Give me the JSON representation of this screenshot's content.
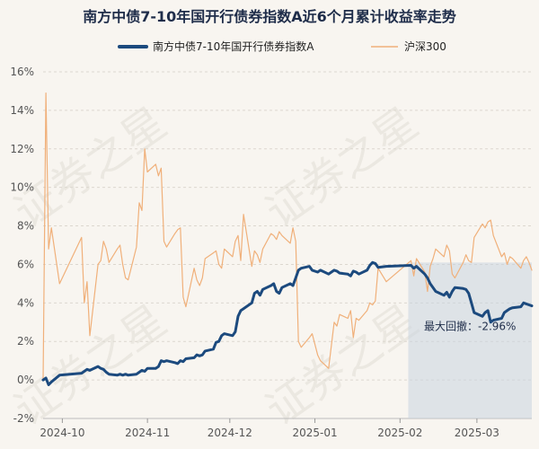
{
  "chart_data": {
    "type": "line",
    "title": "南方中债7-10年国开行债券指数A近6个月累计收益率走势",
    "xlabel": "",
    "ylabel": "",
    "ylim": [
      -2,
      16
    ],
    "y_ticks": [
      "-2%",
      "0%",
      "2%",
      "4%",
      "6%",
      "8%",
      "10%",
      "12%",
      "14%",
      "16%"
    ],
    "x_ticks": [
      "2024-10",
      "2024-11",
      "2024-12",
      "2025-01",
      "2025-02",
      "2025-03"
    ],
    "x_tick_dates": [
      "2024-10-01",
      "2024-11-01",
      "2024-12-01",
      "2025-01-01",
      "2025-02-01",
      "2025-03-01"
    ],
    "grid": "horizontal",
    "legend_position": "top",
    "watermark": "证券之星",
    "series": [
      {
        "name": "南方中债7-10年国开行债券指数A",
        "color": "#1c4a7e",
        "x": [
          "2024-09-24",
          "2024-09-25",
          "2024-09-26",
          "2024-09-27",
          "2024-09-30",
          "2024-10-08",
          "2024-10-09",
          "2024-10-10",
          "2024-10-11",
          "2024-10-14",
          "2024-10-15",
          "2024-10-16",
          "2024-10-17",
          "2024-10-18",
          "2024-10-21",
          "2024-10-22",
          "2024-10-23",
          "2024-10-24",
          "2024-10-25",
          "2024-10-28",
          "2024-10-29",
          "2024-10-30",
          "2024-10-31",
          "2024-11-01",
          "2024-11-04",
          "2024-11-05",
          "2024-11-06",
          "2024-11-07",
          "2024-11-08",
          "2024-11-11",
          "2024-11-12",
          "2024-11-13",
          "2024-11-14",
          "2024-11-15",
          "2024-11-18",
          "2024-11-19",
          "2024-11-20",
          "2024-11-21",
          "2024-11-22",
          "2024-11-25",
          "2024-11-26",
          "2024-11-27",
          "2024-11-28",
          "2024-11-29",
          "2024-12-02",
          "2024-12-03",
          "2024-12-04",
          "2024-12-05",
          "2024-12-06",
          "2024-12-09",
          "2024-12-10",
          "2024-12-11",
          "2024-12-12",
          "2024-12-13",
          "2024-12-16",
          "2024-12-17",
          "2024-12-18",
          "2024-12-19",
          "2024-12-20",
          "2024-12-23",
          "2024-12-24",
          "2024-12-25",
          "2024-12-26",
          "2024-12-27",
          "2024-12-30",
          "2024-12-31",
          "2025-01-02",
          "2025-01-03",
          "2025-01-06",
          "2025-01-07",
          "2025-01-08",
          "2025-01-09",
          "2025-01-10",
          "2025-01-13",
          "2025-01-14",
          "2025-01-15",
          "2025-01-16",
          "2025-01-17",
          "2025-01-20",
          "2025-01-21",
          "2025-01-22",
          "2025-01-23",
          "2025-01-24",
          "2025-01-27",
          "2025-02-05",
          "2025-02-06",
          "2025-02-07",
          "2025-02-10",
          "2025-02-11",
          "2025-02-12",
          "2025-02-13",
          "2025-02-14",
          "2025-02-17",
          "2025-02-18",
          "2025-02-19",
          "2025-02-20",
          "2025-02-21",
          "2025-02-24",
          "2025-02-25",
          "2025-02-26",
          "2025-02-27",
          "2025-02-28",
          "2025-03-03",
          "2025-03-04",
          "2025-03-05",
          "2025-03-06",
          "2025-03-07",
          "2025-03-10",
          "2025-03-11",
          "2025-03-12",
          "2025-03-13",
          "2025-03-14",
          "2025-03-17",
          "2025-03-18",
          "2025-03-19",
          "2025-03-20",
          "2025-03-21"
        ],
        "y": [
          0.0,
          0.1,
          -0.25,
          -0.1,
          0.25,
          0.35,
          0.45,
          0.55,
          0.5,
          0.7,
          0.6,
          0.55,
          0.4,
          0.3,
          0.25,
          0.3,
          0.25,
          0.3,
          0.25,
          0.3,
          0.4,
          0.5,
          0.45,
          0.6,
          0.6,
          0.7,
          1.0,
          0.95,
          1.0,
          0.9,
          0.85,
          1.0,
          0.95,
          1.1,
          1.15,
          1.3,
          1.25,
          1.3,
          1.5,
          1.6,
          1.95,
          2.0,
          2.3,
          2.4,
          2.3,
          2.5,
          3.3,
          3.6,
          3.7,
          4.0,
          4.5,
          4.6,
          4.4,
          4.7,
          4.9,
          5.0,
          4.6,
          4.5,
          4.8,
          5.0,
          4.9,
          5.3,
          5.7,
          5.8,
          5.9,
          5.7,
          5.6,
          5.7,
          5.5,
          5.6,
          5.7,
          5.65,
          5.55,
          5.5,
          5.4,
          5.65,
          5.6,
          5.5,
          5.7,
          5.95,
          6.1,
          6.05,
          5.85,
          5.9,
          5.95,
          5.8,
          5.9,
          5.5,
          5.3,
          5.0,
          4.8,
          4.6,
          4.4,
          4.55,
          4.3,
          4.6,
          4.8,
          4.75,
          4.7,
          4.5,
          4.0,
          3.5,
          3.3,
          3.5,
          3.6,
          3.0,
          3.1,
          3.2,
          3.5,
          3.6,
          3.7,
          3.75,
          3.8,
          4.0,
          3.95,
          3.9,
          3.85
        ]
      },
      {
        "name": "沪深300",
        "color": "#f0b07a",
        "x": [
          "2024-09-24",
          "2024-09-25",
          "2024-09-26",
          "2024-09-27",
          "2024-09-30",
          "2024-10-08",
          "2024-10-09",
          "2024-10-10",
          "2024-10-11",
          "2024-10-14",
          "2024-10-15",
          "2024-10-16",
          "2024-10-17",
          "2024-10-18",
          "2024-10-21",
          "2024-10-22",
          "2024-10-23",
          "2024-10-24",
          "2024-10-25",
          "2024-10-28",
          "2024-10-29",
          "2024-10-30",
          "2024-10-31",
          "2024-11-01",
          "2024-11-04",
          "2024-11-05",
          "2024-11-06",
          "2024-11-07",
          "2024-11-08",
          "2024-11-11",
          "2024-11-12",
          "2024-11-13",
          "2024-11-14",
          "2024-11-15",
          "2024-11-18",
          "2024-11-19",
          "2024-11-20",
          "2024-11-21",
          "2024-11-22",
          "2024-11-25",
          "2024-11-26",
          "2024-11-27",
          "2024-11-28",
          "2024-11-29",
          "2024-12-02",
          "2024-12-03",
          "2024-12-04",
          "2024-12-05",
          "2024-12-06",
          "2024-12-09",
          "2024-12-10",
          "2024-12-11",
          "2024-12-12",
          "2024-12-13",
          "2024-12-16",
          "2024-12-17",
          "2024-12-18",
          "2024-12-19",
          "2024-12-20",
          "2024-12-23",
          "2024-12-24",
          "2024-12-25",
          "2024-12-26",
          "2024-12-27",
          "2024-12-30",
          "2024-12-31",
          "2025-01-02",
          "2025-01-03",
          "2025-01-06",
          "2025-01-07",
          "2025-01-08",
          "2025-01-09",
          "2025-01-10",
          "2025-01-13",
          "2025-01-14",
          "2025-01-15",
          "2025-01-16",
          "2025-01-17",
          "2025-01-20",
          "2025-01-21",
          "2025-01-22",
          "2025-01-23",
          "2025-01-24",
          "2025-01-27",
          "2025-02-05",
          "2025-02-06",
          "2025-02-07",
          "2025-02-10",
          "2025-02-11",
          "2025-02-12",
          "2025-02-13",
          "2025-02-14",
          "2025-02-17",
          "2025-02-18",
          "2025-02-19",
          "2025-02-20",
          "2025-02-21",
          "2025-02-24",
          "2025-02-25",
          "2025-02-26",
          "2025-02-27",
          "2025-02-28",
          "2025-03-03",
          "2025-03-04",
          "2025-03-05",
          "2025-03-06",
          "2025-03-07",
          "2025-03-10",
          "2025-03-11",
          "2025-03-12",
          "2025-03-13",
          "2025-03-14",
          "2025-03-17",
          "2025-03-18",
          "2025-03-19",
          "2025-03-20",
          "2025-03-21"
        ],
        "y": [
          0.0,
          14.9,
          6.8,
          7.9,
          5.0,
          7.4,
          4.0,
          5.1,
          2.3,
          6.0,
          6.2,
          7.2,
          6.8,
          6.1,
          6.8,
          7.0,
          6.0,
          5.3,
          5.2,
          6.9,
          9.2,
          8.8,
          12.0,
          10.8,
          11.2,
          10.6,
          11.0,
          7.2,
          6.9,
          7.6,
          7.8,
          7.9,
          4.3,
          3.8,
          5.8,
          5.2,
          4.9,
          5.3,
          6.3,
          6.6,
          6.7,
          6.0,
          5.8,
          6.8,
          6.4,
          7.2,
          7.5,
          6.2,
          8.6,
          5.9,
          6.7,
          6.5,
          6.1,
          6.8,
          7.6,
          7.5,
          7.3,
          7.7,
          7.5,
          7.1,
          7.9,
          7.2,
          2.0,
          1.7,
          2.2,
          2.4,
          1.3,
          1.0,
          0.6,
          1.8,
          3.0,
          2.8,
          3.4,
          3.2,
          3.6,
          2.2,
          3.2,
          3.1,
          3.6,
          4.0,
          3.9,
          4.1,
          5.8,
          5.1,
          6.2,
          5.4,
          6.3,
          5.6,
          4.6,
          5.9,
          6.3,
          6.8,
          6.4,
          7.0,
          6.7,
          5.5,
          5.3,
          6.1,
          6.5,
          6.2,
          6.1,
          7.4,
          8.1,
          7.9,
          8.2,
          8.3,
          7.5,
          6.4,
          6.6,
          6.0,
          6.4,
          6.3,
          5.8,
          6.2,
          6.4,
          6.1,
          5.7
        ]
      }
    ],
    "max_drawdown": {
      "label": "最大回撤：-2.96%",
      "start": "2025-02-04",
      "end": "2025-03-21"
    }
  }
}
